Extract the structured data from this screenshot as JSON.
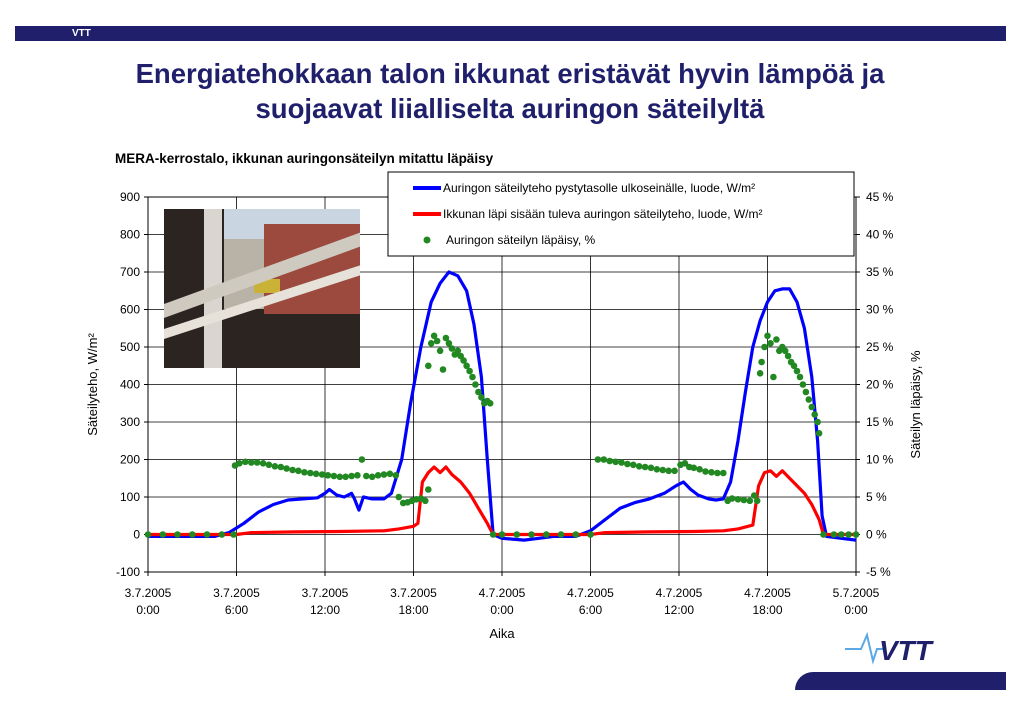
{
  "header": {
    "label": "VTT"
  },
  "title": {
    "line1": "Energiatehokkaan talon ikkunat eristävät hyvin lämpöä ja",
    "line2": "suojaavat liialliselta auringon säteilyltä"
  },
  "subtitle": "MERA-kerrostalo, ikkunan auringonsäteilyn mitattu läpäisy",
  "logo": {
    "text": "VTT"
  },
  "colors": {
    "brand": "#1f1f6b",
    "series_blue": "#0000ff",
    "series_red": "#ff0000",
    "series_green": "#228822"
  },
  "chart_data": {
    "type": "line",
    "xlabel": "Aika",
    "ylabel": "Säteilyteho, W/m²",
    "y2label": "Säteilyn läpäisy, %",
    "ylim": [
      -100,
      900
    ],
    "y2lim": [
      -5,
      45
    ],
    "grid": true,
    "legend_placement": "top-right",
    "x_range_hours": [
      0,
      48
    ],
    "x_ticks": [
      {
        "line1": "3.7.2005",
        "line2": "0:00"
      },
      {
        "line1": "3.7.2005",
        "line2": "6:00"
      },
      {
        "line1": "3.7.2005",
        "line2": "12:00"
      },
      {
        "line1": "3.7.2005",
        "line2": "18:00"
      },
      {
        "line1": "4.7.2005",
        "line2": "0:00"
      },
      {
        "line1": "4.7.2005",
        "line2": "6:00"
      },
      {
        "line1": "4.7.2005",
        "line2": "12:00"
      },
      {
        "line1": "4.7.2005",
        "line2": "18:00"
      },
      {
        "line1": "5.7.2005",
        "line2": "0:00"
      }
    ],
    "y_ticks": [
      "-100",
      "0",
      "100",
      "200",
      "300",
      "400",
      "500",
      "600",
      "700",
      "800",
      "900"
    ],
    "y2_ticks": [
      "-5 %",
      "0 %",
      "5 %",
      "10 %",
      "15 %",
      "20 %",
      "25 %",
      "30 %",
      "35 %",
      "40 %",
      "45 %"
    ],
    "series": [
      {
        "name": "Auringon säteilyteho pystytasolle ulkoseinälle, luode, W/m²",
        "axis": "left",
        "style": "line",
        "color": "#0000ff",
        "points": [
          [
            0,
            -5
          ],
          [
            4.5,
            -5
          ],
          [
            5.5,
            5
          ],
          [
            6.5,
            30
          ],
          [
            7.5,
            60
          ],
          [
            8.5,
            80
          ],
          [
            9.5,
            92
          ],
          [
            10.5,
            95
          ],
          [
            11.5,
            98
          ],
          [
            12,
            110
          ],
          [
            12.3,
            120
          ],
          [
            12.8,
            105
          ],
          [
            13.3,
            100
          ],
          [
            13.8,
            110
          ],
          [
            14,
            95
          ],
          [
            14.3,
            65
          ],
          [
            14.6,
            100
          ],
          [
            15.2,
            95
          ],
          [
            16,
            95
          ],
          [
            16.5,
            110
          ],
          [
            17.2,
            200
          ],
          [
            17.8,
            350
          ],
          [
            18.5,
            500
          ],
          [
            19.2,
            620
          ],
          [
            19.8,
            670
          ],
          [
            20.4,
            700
          ],
          [
            21,
            690
          ],
          [
            21.6,
            650
          ],
          [
            22.1,
            560
          ],
          [
            22.6,
            420
          ],
          [
            23,
            200
          ],
          [
            23.4,
            0
          ],
          [
            24,
            -10
          ],
          [
            25.5,
            -15
          ],
          [
            26.5,
            -10
          ],
          [
            27.5,
            -5
          ],
          [
            29,
            -5
          ],
          [
            30,
            10
          ],
          [
            31,
            40
          ],
          [
            32,
            70
          ],
          [
            33,
            85
          ],
          [
            34,
            95
          ],
          [
            35,
            110
          ],
          [
            35.8,
            130
          ],
          [
            36.3,
            140
          ],
          [
            36.8,
            120
          ],
          [
            37.3,
            105
          ],
          [
            38,
            95
          ],
          [
            38.5,
            92
          ],
          [
            39,
            95
          ],
          [
            39.5,
            140
          ],
          [
            40,
            250
          ],
          [
            40.5,
            380
          ],
          [
            41,
            500
          ],
          [
            41.5,
            570
          ],
          [
            42,
            620
          ],
          [
            42.5,
            650
          ],
          [
            43,
            655
          ],
          [
            43.5,
            655
          ],
          [
            44,
            620
          ],
          [
            44.5,
            550
          ],
          [
            45,
            420
          ],
          [
            45.4,
            250
          ],
          [
            45.7,
            50
          ],
          [
            46,
            -5
          ],
          [
            47,
            -10
          ],
          [
            48,
            -15
          ]
        ]
      },
      {
        "name": "Ikkunan läpi sisään tuleva auringon säteilyteho, luode, W/m²",
        "axis": "left",
        "style": "line",
        "color": "#ff0000",
        "points": [
          [
            0,
            0
          ],
          [
            6,
            0
          ],
          [
            7,
            5
          ],
          [
            10,
            7
          ],
          [
            13,
            8
          ],
          [
            16,
            10
          ],
          [
            17,
            15
          ],
          [
            18,
            22
          ],
          [
            18.3,
            30
          ],
          [
            18.6,
            140
          ],
          [
            19,
            165
          ],
          [
            19.4,
            180
          ],
          [
            19.8,
            165
          ],
          [
            20.2,
            180
          ],
          [
            20.6,
            160
          ],
          [
            21.2,
            140
          ],
          [
            21.8,
            110
          ],
          [
            22.4,
            70
          ],
          [
            23,
            30
          ],
          [
            23.4,
            0
          ],
          [
            24,
            0
          ],
          [
            30,
            0
          ],
          [
            31,
            5
          ],
          [
            34,
            7
          ],
          [
            37,
            8
          ],
          [
            39,
            10
          ],
          [
            40,
            15
          ],
          [
            41,
            25
          ],
          [
            41.4,
            130
          ],
          [
            41.8,
            165
          ],
          [
            42.2,
            170
          ],
          [
            42.6,
            155
          ],
          [
            43,
            170
          ],
          [
            43.5,
            150
          ],
          [
            44,
            130
          ],
          [
            44.5,
            110
          ],
          [
            45,
            80
          ],
          [
            45.5,
            40
          ],
          [
            45.8,
            0
          ],
          [
            48,
            0
          ]
        ]
      },
      {
        "name": "Auringon säteilyn läpäisy, %",
        "axis": "right",
        "style": "dots",
        "color": "#228822",
        "points": [
          [
            0,
            0
          ],
          [
            1,
            0
          ],
          [
            2,
            0
          ],
          [
            3,
            0
          ],
          [
            4,
            0
          ],
          [
            5,
            0
          ],
          [
            5.8,
            0
          ],
          [
            5.9,
            9.2
          ],
          [
            6.2,
            9.5
          ],
          [
            6.6,
            9.7
          ],
          [
            7,
            9.6
          ],
          [
            7.4,
            9.6
          ],
          [
            7.8,
            9.5
          ],
          [
            8.2,
            9.3
          ],
          [
            8.6,
            9.1
          ],
          [
            9,
            9
          ],
          [
            9.4,
            8.8
          ],
          [
            9.8,
            8.6
          ],
          [
            10.2,
            8.5
          ],
          [
            10.6,
            8.3
          ],
          [
            11,
            8.2
          ],
          [
            11.4,
            8.1
          ],
          [
            11.8,
            8
          ],
          [
            12.2,
            7.9
          ],
          [
            12.6,
            7.8
          ],
          [
            13,
            7.7
          ],
          [
            13.4,
            7.7
          ],
          [
            13.8,
            7.8
          ],
          [
            14.2,
            7.9
          ],
          [
            14.5,
            10
          ],
          [
            14.8,
            7.8
          ],
          [
            15.2,
            7.7
          ],
          [
            15.6,
            7.9
          ],
          [
            16,
            8
          ],
          [
            16.4,
            8.1
          ],
          [
            16.8,
            7.9
          ],
          [
            17,
            5
          ],
          [
            17.3,
            4.2
          ],
          [
            17.6,
            4.3
          ],
          [
            17.9,
            4.5
          ],
          [
            18.2,
            4.7
          ],
          [
            18.5,
            4.8
          ],
          [
            18.8,
            4.5
          ],
          [
            19,
            6
          ],
          [
            19,
            22.5
          ],
          [
            19.2,
            25.5
          ],
          [
            19.4,
            26.5
          ],
          [
            19.6,
            25.8
          ],
          [
            19.8,
            24.5
          ],
          [
            20,
            22
          ],
          [
            20.2,
            26.2
          ],
          [
            20.4,
            25.5
          ],
          [
            20.6,
            24.8
          ],
          [
            20.8,
            24
          ],
          [
            21,
            24.5
          ],
          [
            21.2,
            23.8
          ],
          [
            21.4,
            23.2
          ],
          [
            21.6,
            22.5
          ],
          [
            21.8,
            21.8
          ],
          [
            22,
            21
          ],
          [
            22.2,
            20
          ],
          [
            22.4,
            19
          ],
          [
            22.6,
            18.3
          ],
          [
            22.8,
            17.5
          ],
          [
            23,
            17.8
          ],
          [
            23.2,
            17.5
          ],
          [
            23.4,
            0
          ],
          [
            24,
            0
          ],
          [
            25,
            0
          ],
          [
            26,
            0
          ],
          [
            27,
            0
          ],
          [
            28,
            0
          ],
          [
            29,
            0
          ],
          [
            30,
            0
          ],
          [
            30.5,
            10
          ],
          [
            30.9,
            10
          ],
          [
            31.3,
            9.8
          ],
          [
            31.7,
            9.7
          ],
          [
            32.1,
            9.6
          ],
          [
            32.5,
            9.4
          ],
          [
            32.9,
            9.3
          ],
          [
            33.3,
            9.1
          ],
          [
            33.7,
            9
          ],
          [
            34.1,
            8.9
          ],
          [
            34.5,
            8.7
          ],
          [
            34.9,
            8.6
          ],
          [
            35.3,
            8.5
          ],
          [
            35.7,
            8.5
          ],
          [
            36.1,
            9.3
          ],
          [
            36.4,
            9.5
          ],
          [
            36.7,
            9
          ],
          [
            37,
            8.9
          ],
          [
            37.4,
            8.7
          ],
          [
            37.8,
            8.4
          ],
          [
            38.2,
            8.3
          ],
          [
            38.6,
            8.2
          ],
          [
            39,
            8.2
          ],
          [
            39.3,
            4.5
          ],
          [
            39.6,
            4.8
          ],
          [
            40,
            4.7
          ],
          [
            40.4,
            4.6
          ],
          [
            40.8,
            4.5
          ],
          [
            41.1,
            5.2
          ],
          [
            41.3,
            4.5
          ],
          [
            41.5,
            21.5
          ],
          [
            41.6,
            23
          ],
          [
            41.8,
            25
          ],
          [
            42,
            26.5
          ],
          [
            42.2,
            25.5
          ],
          [
            42.4,
            21
          ],
          [
            42.6,
            26
          ],
          [
            42.8,
            24.5
          ],
          [
            43,
            25
          ],
          [
            43.2,
            24.5
          ],
          [
            43.4,
            23.8
          ],
          [
            43.6,
            23
          ],
          [
            43.8,
            22.5
          ],
          [
            44,
            21.8
          ],
          [
            44.2,
            21
          ],
          [
            44.4,
            20
          ],
          [
            44.6,
            19
          ],
          [
            44.8,
            18
          ],
          [
            45,
            17
          ],
          [
            45.2,
            16
          ],
          [
            45.4,
            15
          ],
          [
            45.5,
            13.5
          ],
          [
            45.8,
            0
          ],
          [
            46.5,
            0
          ],
          [
            47,
            0
          ],
          [
            47.5,
            0
          ],
          [
            48,
            0
          ]
        ]
      }
    ]
  }
}
